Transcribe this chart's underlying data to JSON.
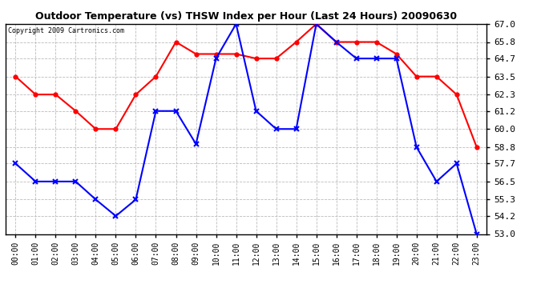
{
  "title": "Outdoor Temperature (vs) THSW Index per Hour (Last 24 Hours) 20090630",
  "copyright": "Copyright 2009 Cartronics.com",
  "hours": [
    "00:00",
    "01:00",
    "02:00",
    "03:00",
    "04:00",
    "05:00",
    "06:00",
    "07:00",
    "08:00",
    "09:00",
    "10:00",
    "11:00",
    "12:00",
    "13:00",
    "14:00",
    "15:00",
    "16:00",
    "17:00",
    "18:00",
    "19:00",
    "20:00",
    "21:00",
    "22:00",
    "23:00"
  ],
  "temp": [
    63.5,
    62.3,
    62.3,
    61.2,
    60.0,
    60.0,
    62.3,
    63.5,
    65.8,
    65.0,
    65.0,
    65.0,
    64.7,
    64.7,
    65.8,
    67.0,
    65.8,
    65.8,
    65.8,
    65.0,
    63.5,
    63.5,
    62.3,
    58.8
  ],
  "thsw": [
    57.7,
    56.5,
    56.5,
    56.5,
    55.3,
    54.2,
    55.3,
    61.2,
    61.2,
    59.0,
    64.7,
    67.0,
    61.2,
    60.0,
    60.0,
    67.0,
    65.8,
    64.7,
    64.7,
    64.7,
    58.8,
    56.5,
    57.7,
    53.0
  ],
  "temp_color": "#ff0000",
  "thsw_color": "#0000ff",
  "bg_color": "#ffffff",
  "grid_color": "#bbbbbb",
  "ylim_min": 53.0,
  "ylim_max": 67.0,
  "yticks": [
    53.0,
    54.2,
    55.3,
    56.5,
    57.7,
    58.8,
    60.0,
    61.2,
    62.3,
    63.5,
    64.7,
    65.8,
    67.0
  ]
}
